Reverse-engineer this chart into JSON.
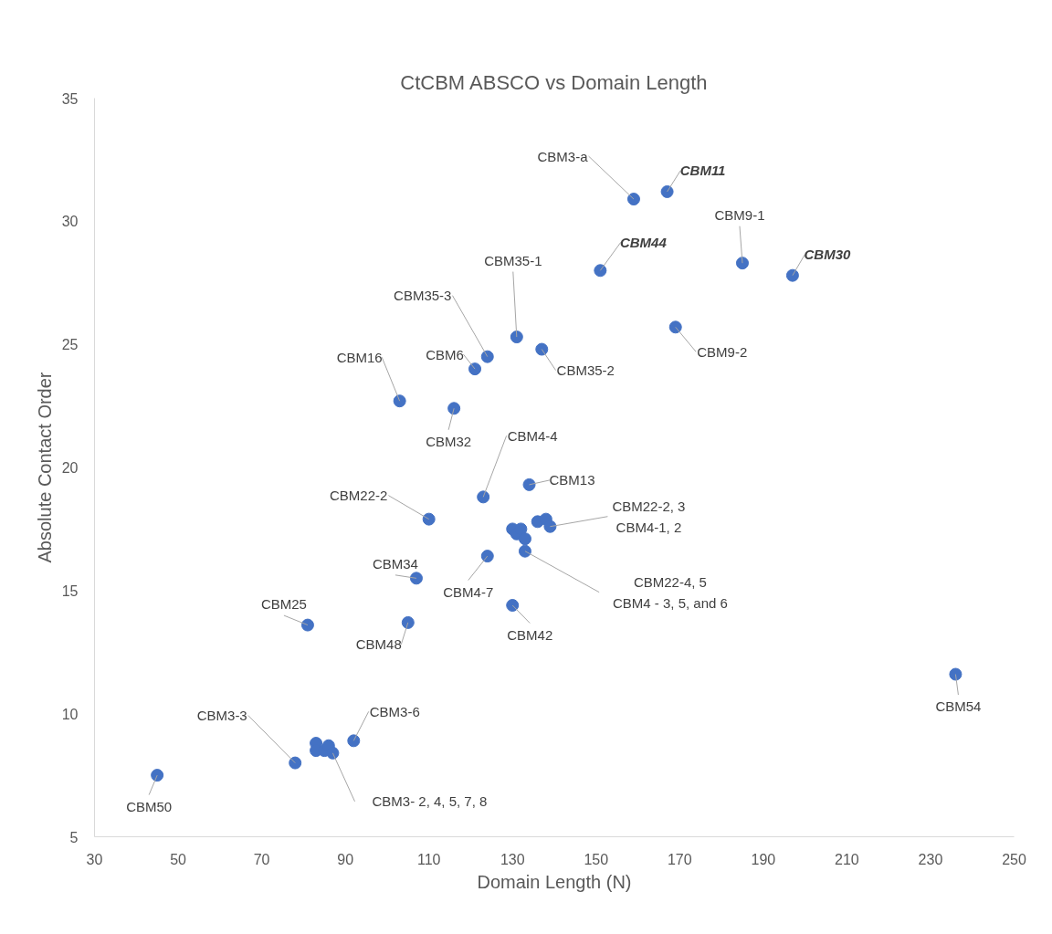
{
  "chart_data": {
    "type": "scatter",
    "title": "CtCBM ABSCO vs Domain Length",
    "xlabel": "Domain Length (N)",
    "ylabel": "Absolute Contact Order",
    "x": [
      45,
      78,
      83,
      83,
      85,
      86,
      87,
      92,
      81,
      105,
      107,
      124,
      130,
      110,
      123,
      134,
      130,
      131,
      132,
      133,
      133,
      136,
      138,
      139,
      103,
      116,
      121,
      124,
      131,
      137,
      159,
      167,
      151,
      185,
      197,
      169,
      236
    ],
    "values": [
      7.5,
      8.0,
      8.8,
      8.5,
      8.5,
      8.7,
      8.4,
      8.9,
      13.6,
      13.7,
      15.5,
      16.4,
      14.4,
      17.9,
      18.8,
      19.3,
      17.5,
      17.3,
      17.5,
      17.1,
      16.6,
      17.8,
      17.9,
      17.6,
      22.7,
      22.4,
      24.0,
      24.5,
      25.3,
      24.8,
      30.9,
      31.2,
      28.0,
      28.3,
      27.8,
      25.7,
      11.6
    ],
    "color": "#4472c4",
    "marker": "circle",
    "xlim": [
      30,
      250
    ],
    "ylim": [
      5,
      35
    ],
    "xticks": [
      30,
      50,
      70,
      90,
      110,
      130,
      150,
      170,
      190,
      210,
      230,
      250
    ],
    "yticks": [
      5,
      10,
      15,
      20,
      25,
      30,
      35
    ],
    "grid": false,
    "annotations": [
      {
        "text": "CBM3-a",
        "x": 159,
        "y": 30.9
      },
      {
        "text": "CBM11",
        "x": 167,
        "y": 31.2
      },
      {
        "text": "CBM44",
        "x": 151,
        "y": 28.0
      },
      {
        "text": "CBM9-1",
        "x": 185,
        "y": 28.3
      },
      {
        "text": "CBM30",
        "x": 197,
        "y": 27.8
      },
      {
        "text": "CBM35-1",
        "x": 131,
        "y": 25.3
      },
      {
        "text": "CBM35-3",
        "x": 124,
        "y": 24.5
      },
      {
        "text": "CBM6",
        "x": 121,
        "y": 24.0
      },
      {
        "text": "CBM16",
        "x": 103,
        "y": 22.7
      },
      {
        "text": "CBM35-2",
        "x": 137,
        "y": 24.8
      },
      {
        "text": "CBM9-2",
        "x": 169,
        "y": 25.7
      },
      {
        "text": "CBM32",
        "x": 116,
        "y": 22.4
      },
      {
        "text": "CBM4-4",
        "x": 123,
        "y": 18.8
      },
      {
        "text": "CBM13",
        "x": 134,
        "y": 19.3
      },
      {
        "text": "CBM22-2",
        "x": 110,
        "y": 17.9
      },
      {
        "text": "CBM22-2, 3\nCBM4-1, 2",
        "x": 139,
        "y": 17.6
      },
      {
        "text": "CBM34",
        "x": 107,
        "y": 15.5
      },
      {
        "text": "CBM4-7",
        "x": 124,
        "y": 16.4
      },
      {
        "text": "CBM22-4, 5\nCBM4 - 3, 5, and 6",
        "x": 133,
        "y": 16.6
      },
      {
        "text": "CBM25",
        "x": 81,
        "y": 13.6
      },
      {
        "text": "CBM48",
        "x": 105,
        "y": 13.7
      },
      {
        "text": "CBM42",
        "x": 130,
        "y": 14.4
      },
      {
        "text": "CBM54",
        "x": 236,
        "y": 11.6
      },
      {
        "text": "CBM3-3",
        "x": 78,
        "y": 8.0
      },
      {
        "text": "CBM3-6",
        "x": 92,
        "y": 8.9
      },
      {
        "text": "CBM3- 2, 4, 5, 7, 8",
        "x": 87,
        "y": 8.4
      },
      {
        "text": "CBM50",
        "x": 45,
        "y": 7.5
      }
    ]
  }
}
